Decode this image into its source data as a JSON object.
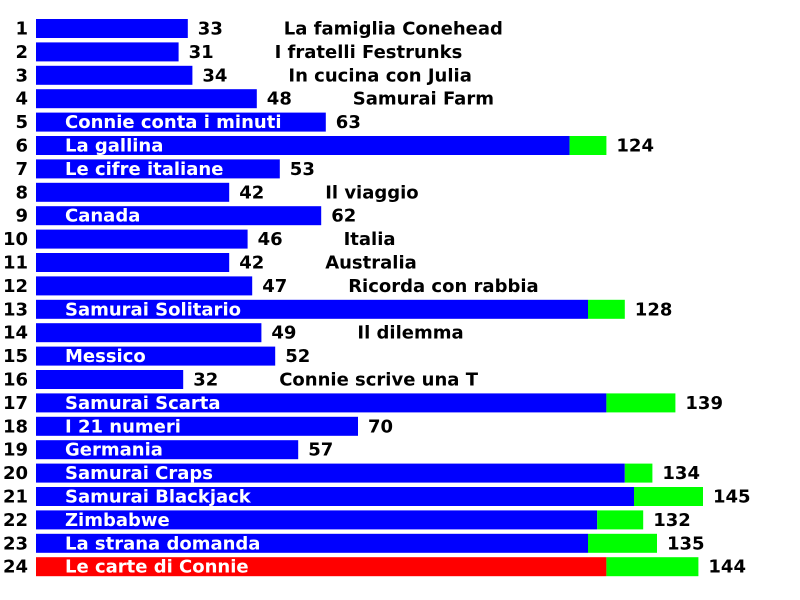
{
  "chart_data": {
    "type": "bar",
    "orientation": "horizontal",
    "stacked": true,
    "grid": false,
    "legend": "none",
    "categories": [
      "1",
      "2",
      "3",
      "4",
      "5",
      "6",
      "7",
      "8",
      "9",
      "10",
      "11",
      "12",
      "13",
      "14",
      "15",
      "16",
      "17",
      "18",
      "19",
      "20",
      "21",
      "22",
      "23",
      "24"
    ],
    "rows": [
      {
        "rank": "1",
        "label": "La famiglia Conehead",
        "primary": 33,
        "extra": 0,
        "total": 33,
        "color": "#0000ff"
      },
      {
        "rank": "2",
        "label": "I fratelli Festrunks",
        "primary": 31,
        "extra": 0,
        "total": 31,
        "color": "#0000ff"
      },
      {
        "rank": "3",
        "label": "In cucina con Julia",
        "primary": 34,
        "extra": 0,
        "total": 34,
        "color": "#0000ff"
      },
      {
        "rank": "4",
        "label": "Samurai Farm",
        "primary": 48,
        "extra": 0,
        "total": 48,
        "color": "#0000ff"
      },
      {
        "rank": "5",
        "label": "Connie conta i minuti",
        "primary": 63,
        "extra": 0,
        "total": 63,
        "color": "#0000ff"
      },
      {
        "rank": "6",
        "label": "La gallina",
        "primary": 116,
        "extra": 8,
        "total": 124,
        "color": "#0000ff"
      },
      {
        "rank": "7",
        "label": "Le cifre italiane",
        "primary": 53,
        "extra": 0,
        "total": 53,
        "color": "#0000ff"
      },
      {
        "rank": "8",
        "label": "Il viaggio",
        "primary": 42,
        "extra": 0,
        "total": 42,
        "color": "#0000ff"
      },
      {
        "rank": "9",
        "label": "Canada",
        "primary": 62,
        "extra": 0,
        "total": 62,
        "color": "#0000ff"
      },
      {
        "rank": "10",
        "label": "Italia",
        "primary": 46,
        "extra": 0,
        "total": 46,
        "color": "#0000ff"
      },
      {
        "rank": "11",
        "label": "Australia",
        "primary": 42,
        "extra": 0,
        "total": 42,
        "color": "#0000ff"
      },
      {
        "rank": "12",
        "label": "Ricorda con rabbia",
        "primary": 47,
        "extra": 0,
        "total": 47,
        "color": "#0000ff"
      },
      {
        "rank": "13",
        "label": "Samurai Solitario",
        "primary": 120,
        "extra": 8,
        "total": 128,
        "color": "#0000ff"
      },
      {
        "rank": "14",
        "label": "Il dilemma",
        "primary": 49,
        "extra": 0,
        "total": 49,
        "color": "#0000ff"
      },
      {
        "rank": "15",
        "label": "Messico",
        "primary": 52,
        "extra": 0,
        "total": 52,
        "color": "#0000ff"
      },
      {
        "rank": "16",
        "label": "Connie scrive una T",
        "primary": 32,
        "extra": 0,
        "total": 32,
        "color": "#0000ff"
      },
      {
        "rank": "17",
        "label": "Samurai Scarta",
        "primary": 124,
        "extra": 15,
        "total": 139,
        "color": "#0000ff"
      },
      {
        "rank": "18",
        "label": "I 21 numeri",
        "primary": 70,
        "extra": 0,
        "total": 70,
        "color": "#0000ff"
      },
      {
        "rank": "19",
        "label": "Germania",
        "primary": 57,
        "extra": 0,
        "total": 57,
        "color": "#0000ff"
      },
      {
        "rank": "20",
        "label": "Samurai Craps",
        "primary": 128,
        "extra": 6,
        "total": 134,
        "color": "#0000ff"
      },
      {
        "rank": "21",
        "label": "Samurai Blackjack",
        "primary": 130,
        "extra": 15,
        "total": 145,
        "color": "#0000ff"
      },
      {
        "rank": "22",
        "label": "Zimbabwe",
        "primary": 122,
        "extra": 10,
        "total": 132,
        "color": "#0000ff"
      },
      {
        "rank": "23",
        "label": "La strana domanda",
        "primary": 120,
        "extra": 15,
        "total": 135,
        "color": "#0000ff"
      },
      {
        "rank": "24",
        "label": "Le carte di Connie",
        "primary": 124,
        "extra": 20,
        "total": 144,
        "color": "#ff0000"
      }
    ],
    "extra_color": "#00ff00",
    "inside_label_color": "#ffffff",
    "xlim": [
      0,
      150
    ],
    "title": "",
    "xlabel": "",
    "ylabel": ""
  }
}
